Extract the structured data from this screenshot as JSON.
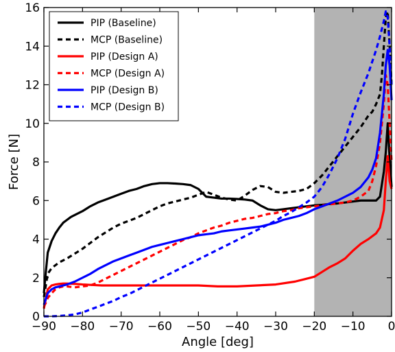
{
  "chart_data": {
    "type": "line",
    "xlabel": "Angle [deg]",
    "ylabel": "Force [N]",
    "xlim": [
      -90,
      0
    ],
    "ylim": [
      0,
      16
    ],
    "x_ticks": [
      -90,
      -80,
      -70,
      -60,
      -50,
      -40,
      -30,
      -20,
      -10,
      0
    ],
    "x_tick_labels": [
      "−90",
      "−80",
      "−70",
      "−60",
      "−50",
      "−40",
      "−30",
      "−20",
      "−10",
      "0"
    ],
    "y_ticks": [
      0,
      2,
      4,
      6,
      8,
      10,
      12,
      14,
      16
    ],
    "y_tick_labels": [
      "0",
      "2",
      "4",
      "6",
      "8",
      "10",
      "12",
      "14",
      "16"
    ],
    "grid": false,
    "legend_position": "top-left",
    "shaded_region": {
      "x": [
        -20,
        0
      ],
      "color": "#b3b3b3"
    },
    "series": [
      {
        "name": "PIP (Baseline)",
        "color": "#000000",
        "style": "solid",
        "x": [
          -90,
          -89.5,
          -89,
          -88,
          -87,
          -86,
          -85,
          -84,
          -83,
          -82,
          -80,
          -78,
          -76,
          -74,
          -72,
          -70,
          -68,
          -66,
          -64,
          -62,
          -60,
          -58,
          -56,
          -54,
          -52,
          -50,
          -48,
          -46,
          -44,
          -42,
          -40,
          -38,
          -36,
          -34,
          -32,
          -30,
          -28,
          -26,
          -24,
          -22,
          -20,
          -18,
          -16,
          -14,
          -12,
          -10,
          -8,
          -6,
          -4,
          -3,
          -2,
          -1.5,
          -1,
          -0.5,
          0
        ],
        "y": [
          1.2,
          2.3,
          3.3,
          3.9,
          4.3,
          4.6,
          4.85,
          5.0,
          5.15,
          5.25,
          5.45,
          5.7,
          5.9,
          6.05,
          6.2,
          6.35,
          6.5,
          6.6,
          6.75,
          6.85,
          6.9,
          6.9,
          6.88,
          6.85,
          6.8,
          6.6,
          6.2,
          6.15,
          6.1,
          6.1,
          6.08,
          6.05,
          6.0,
          5.75,
          5.55,
          5.5,
          5.55,
          5.6,
          5.65,
          5.7,
          5.75,
          5.78,
          5.82,
          5.85,
          5.9,
          5.95,
          6.0,
          6.0,
          6.0,
          6.2,
          7.5,
          8.5,
          10.0,
          8.2,
          6.7
        ]
      },
      {
        "name": "MCP (Baseline)",
        "color": "#000000",
        "style": "dashed",
        "x": [
          -90,
          -89.5,
          -89,
          -88,
          -87,
          -86,
          -84,
          -82,
          -80,
          -78,
          -76,
          -74,
          -72,
          -70,
          -68,
          -66,
          -64,
          -62,
          -60,
          -58,
          -56,
          -54,
          -52,
          -50,
          -48,
          -46,
          -44,
          -42,
          -40,
          -38,
          -36,
          -34,
          -32,
          -30,
          -28,
          -26,
          -24,
          -22,
          -20,
          -18,
          -16,
          -14,
          -12,
          -10,
          -8,
          -6,
          -5,
          -4,
          -3,
          -2.5,
          -2,
          -1.5,
          -1,
          -0.5,
          0
        ],
        "y": [
          1.0,
          1.6,
          2.2,
          2.5,
          2.65,
          2.8,
          3.0,
          3.25,
          3.5,
          3.8,
          4.1,
          4.35,
          4.6,
          4.8,
          4.95,
          5.1,
          5.3,
          5.5,
          5.7,
          5.85,
          5.95,
          6.05,
          6.15,
          6.3,
          6.45,
          6.3,
          6.15,
          6.05,
          6.0,
          6.25,
          6.55,
          6.75,
          6.7,
          6.45,
          6.4,
          6.45,
          6.5,
          6.6,
          6.9,
          7.3,
          7.8,
          8.3,
          8.8,
          9.3,
          9.8,
          10.4,
          10.6,
          11.0,
          11.5,
          12.5,
          14.0,
          15.5,
          15.8,
          14.0,
          12.0
        ]
      },
      {
        "name": "PIP (Design A)",
        "color": "#ff0000",
        "style": "solid",
        "x": [
          -90,
          -89.5,
          -89,
          -88,
          -87,
          -86,
          -85,
          -84,
          -82,
          -80,
          -75,
          -70,
          -65,
          -60,
          -55,
          -50,
          -45,
          -40,
          -35,
          -30,
          -25,
          -22,
          -20,
          -18,
          -16,
          -14,
          -12,
          -10,
          -8,
          -6,
          -4,
          -3,
          -2,
          -1.5,
          -1,
          -0.5,
          0
        ],
        "y": [
          0.4,
          0.9,
          1.4,
          1.6,
          1.65,
          1.68,
          1.7,
          1.7,
          1.68,
          1.65,
          1.6,
          1.6,
          1.6,
          1.6,
          1.6,
          1.6,
          1.55,
          1.55,
          1.6,
          1.65,
          1.8,
          1.95,
          2.05,
          2.3,
          2.55,
          2.75,
          3.0,
          3.4,
          3.75,
          4.0,
          4.3,
          4.6,
          5.5,
          7.0,
          8.3,
          7.0,
          6.6
        ]
      },
      {
        "name": "MCP (Design A)",
        "color": "#ff0000",
        "style": "dashed",
        "x": [
          -90,
          -89.5,
          -89,
          -88,
          -87,
          -86,
          -85,
          -84,
          -82,
          -80,
          -78,
          -76,
          -74,
          -72,
          -70,
          -68,
          -66,
          -64,
          -62,
          -60,
          -58,
          -56,
          -54,
          -52,
          -50,
          -48,
          -46,
          -44,
          -42,
          -40,
          -38,
          -36,
          -34,
          -32,
          -30,
          -28,
          -26,
          -24,
          -22,
          -20,
          -18,
          -16,
          -14,
          -12,
          -10,
          -8,
          -6,
          -5,
          -4,
          -3,
          -2,
          -1.5,
          -1,
          -0.5,
          0
        ],
        "y": [
          0.5,
          0.7,
          0.95,
          1.2,
          1.4,
          1.5,
          1.55,
          1.55,
          1.5,
          1.55,
          1.6,
          1.75,
          1.95,
          2.15,
          2.35,
          2.55,
          2.75,
          2.95,
          3.15,
          3.35,
          3.55,
          3.75,
          3.95,
          4.1,
          4.3,
          4.45,
          4.6,
          4.7,
          4.85,
          4.95,
          5.05,
          5.1,
          5.2,
          5.3,
          5.35,
          5.45,
          5.5,
          5.6,
          5.65,
          5.7,
          5.75,
          5.8,
          5.85,
          5.9,
          6.0,
          6.2,
          6.5,
          7.0,
          7.8,
          9.0,
          11.0,
          12.5,
          12.0,
          10.0,
          8.0
        ]
      },
      {
        "name": "PIP (Design B)",
        "color": "#0000ff",
        "style": "solid",
        "x": [
          -90,
          -89.5,
          -89,
          -88,
          -87,
          -86,
          -84,
          -82,
          -80,
          -78,
          -76,
          -74,
          -72,
          -70,
          -68,
          -66,
          -64,
          -62,
          -60,
          -58,
          -56,
          -54,
          -52,
          -50,
          -48,
          -46,
          -44,
          -42,
          -40,
          -38,
          -36,
          -34,
          -32,
          -30,
          -28,
          -26,
          -24,
          -22,
          -20,
          -18,
          -16,
          -14,
          -12,
          -10,
          -8,
          -6,
          -5,
          -4,
          -3,
          -2,
          -1.5,
          -1,
          -0.5,
          0
        ],
        "y": [
          0.6,
          0.9,
          1.2,
          1.4,
          1.5,
          1.55,
          1.65,
          1.8,
          2.0,
          2.2,
          2.45,
          2.65,
          2.85,
          3.0,
          3.15,
          3.3,
          3.45,
          3.6,
          3.7,
          3.8,
          3.9,
          4.0,
          4.1,
          4.2,
          4.25,
          4.3,
          4.4,
          4.45,
          4.5,
          4.55,
          4.6,
          4.65,
          4.75,
          4.85,
          5.0,
          5.1,
          5.2,
          5.35,
          5.55,
          5.7,
          5.85,
          6.0,
          6.2,
          6.4,
          6.7,
          7.2,
          7.6,
          8.2,
          9.5,
          11.5,
          13.0,
          13.8,
          13.0,
          11.2
        ]
      },
      {
        "name": "MCP (Design B)",
        "color": "#0000ff",
        "style": "dashed",
        "x": [
          -90,
          -88,
          -86,
          -84,
          -82,
          -80,
          -78,
          -76,
          -74,
          -72,
          -70,
          -68,
          -66,
          -64,
          -62,
          -60,
          -58,
          -56,
          -54,
          -52,
          -50,
          -48,
          -46,
          -44,
          -42,
          -40,
          -38,
          -36,
          -34,
          -32,
          -30,
          -28,
          -26,
          -24,
          -22,
          -20,
          -18,
          -16,
          -14,
          -12,
          -10,
          -8,
          -6,
          -5,
          -4,
          -3,
          -2,
          -1.5,
          -1,
          -0.5,
          0
        ],
        "y": [
          0.0,
          0.0,
          0.02,
          0.05,
          0.1,
          0.2,
          0.35,
          0.5,
          0.65,
          0.8,
          1.0,
          1.15,
          1.35,
          1.55,
          1.75,
          1.95,
          2.15,
          2.35,
          2.55,
          2.75,
          2.95,
          3.15,
          3.35,
          3.55,
          3.75,
          3.95,
          4.15,
          4.35,
          4.55,
          4.75,
          4.95,
          5.2,
          5.4,
          5.65,
          5.9,
          6.2,
          6.7,
          7.4,
          8.2,
          9.2,
          10.5,
          11.6,
          12.6,
          13.2,
          13.8,
          14.5,
          15.3,
          15.8,
          15.5,
          14.0,
          12.0
        ]
      }
    ]
  }
}
